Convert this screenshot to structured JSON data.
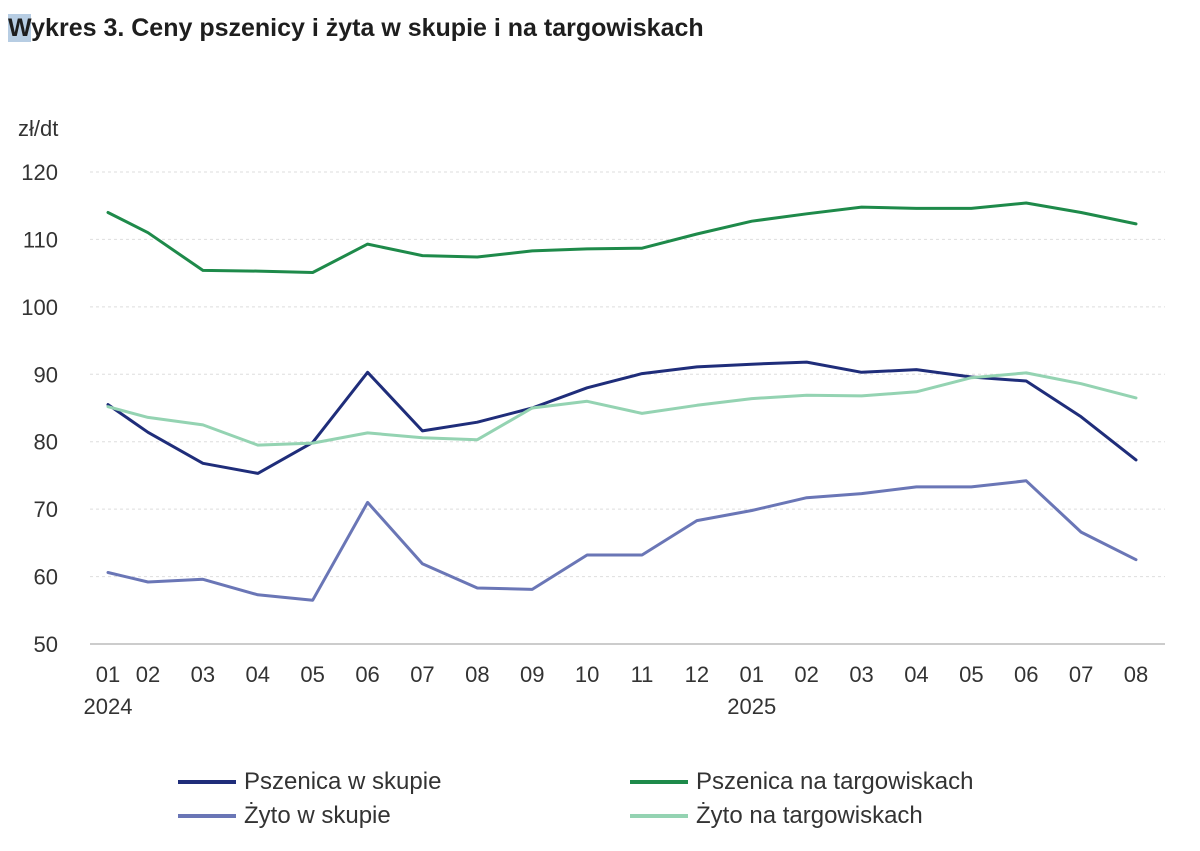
{
  "title": {
    "prefix": "W",
    "rest": "ykres 3. Ceny pszenicy i żyta w skupie i na targowiskach"
  },
  "chart_data": {
    "type": "line",
    "title": "Wykres 3. Ceny pszenicy i żyta w skupie i na targowiskach",
    "ylabel": "zł/dt",
    "xlabel": "",
    "ylim": [
      50,
      120
    ],
    "yticks": [
      50,
      60,
      70,
      80,
      90,
      100,
      110,
      120
    ],
    "grid": true,
    "legend_placement": "bottom",
    "categories": [
      "01",
      "02",
      "03",
      "04",
      "05",
      "06",
      "07",
      "08",
      "09",
      "10",
      "11",
      "12",
      "01",
      "02",
      "03",
      "04",
      "05",
      "06",
      "07",
      "08"
    ],
    "year_labels": [
      {
        "label": "2024",
        "index": 0
      },
      {
        "label": "2025",
        "index": 12
      }
    ],
    "series": [
      {
        "name": "Pszenica w skupie",
        "color": "#1f2d7a",
        "values": [
          85.5,
          81.4,
          76.8,
          75.3,
          79.9,
          90.3,
          81.6,
          82.9,
          85.0,
          88.0,
          90.1,
          91.1,
          91.5,
          91.8,
          90.3,
          90.7,
          89.6,
          89.0,
          83.7,
          77.3
        ]
      },
      {
        "name": "Pszenica na targowiskach",
        "color": "#1e8a4a",
        "values": [
          114.0,
          111.0,
          105.4,
          105.3,
          105.1,
          109.3,
          107.6,
          107.4,
          108.3,
          108.6,
          108.7,
          110.8,
          112.7,
          113.8,
          114.8,
          114.6,
          114.6,
          115.4,
          114.0,
          112.3
        ]
      },
      {
        "name": "Żyto w skupie",
        "color": "#6a76b6",
        "values": [
          60.6,
          59.2,
          59.6,
          57.3,
          56.5,
          71.0,
          61.9,
          58.3,
          58.1,
          63.2,
          63.2,
          68.3,
          69.8,
          71.7,
          72.3,
          73.3,
          73.3,
          74.2,
          66.6,
          62.5
        ]
      },
      {
        "name": "Żyto na targowiskach",
        "color": "#94d3b2",
        "values": [
          85.2,
          83.6,
          82.5,
          79.5,
          79.8,
          81.3,
          80.6,
          80.3,
          85.0,
          86.0,
          84.2,
          85.4,
          86.4,
          86.9,
          86.8,
          87.4,
          89.5,
          90.2,
          88.6,
          86.5
        ]
      }
    ]
  }
}
